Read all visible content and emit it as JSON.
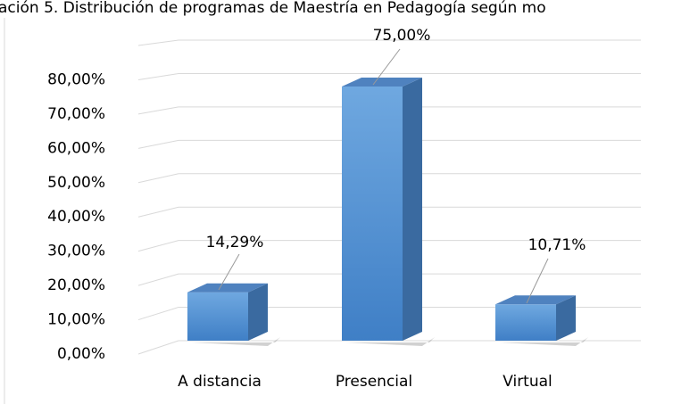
{
  "chart_data": {
    "type": "bar3d",
    "title": "ación 5. Distribución de programas de Maestría en Pedagogía según mo",
    "categories": [
      "A distancia",
      "Presencial",
      "Virtual"
    ],
    "values": [
      14.29,
      75,
      10.71
    ],
    "value_labels": [
      "14,29%",
      "75,00%",
      "10,71%"
    ],
    "color": "#5b9bd5",
    "ylim": [
      0,
      90
    ],
    "yticks": [
      {
        "value": 0,
        "label": "0,00%"
      },
      {
        "value": 10,
        "label": "10,00%"
      },
      {
        "value": 20,
        "label": "20,00%"
      },
      {
        "value": 30,
        "label": "30,00%"
      },
      {
        "value": 40,
        "label": "40,00%"
      },
      {
        "value": 50,
        "label": "50,00%"
      },
      {
        "value": 60,
        "label": "60,00%"
      },
      {
        "value": 70,
        "label": "70,00%"
      },
      {
        "value": 80,
        "label": "80,00%"
      }
    ],
    "grid": true
  }
}
